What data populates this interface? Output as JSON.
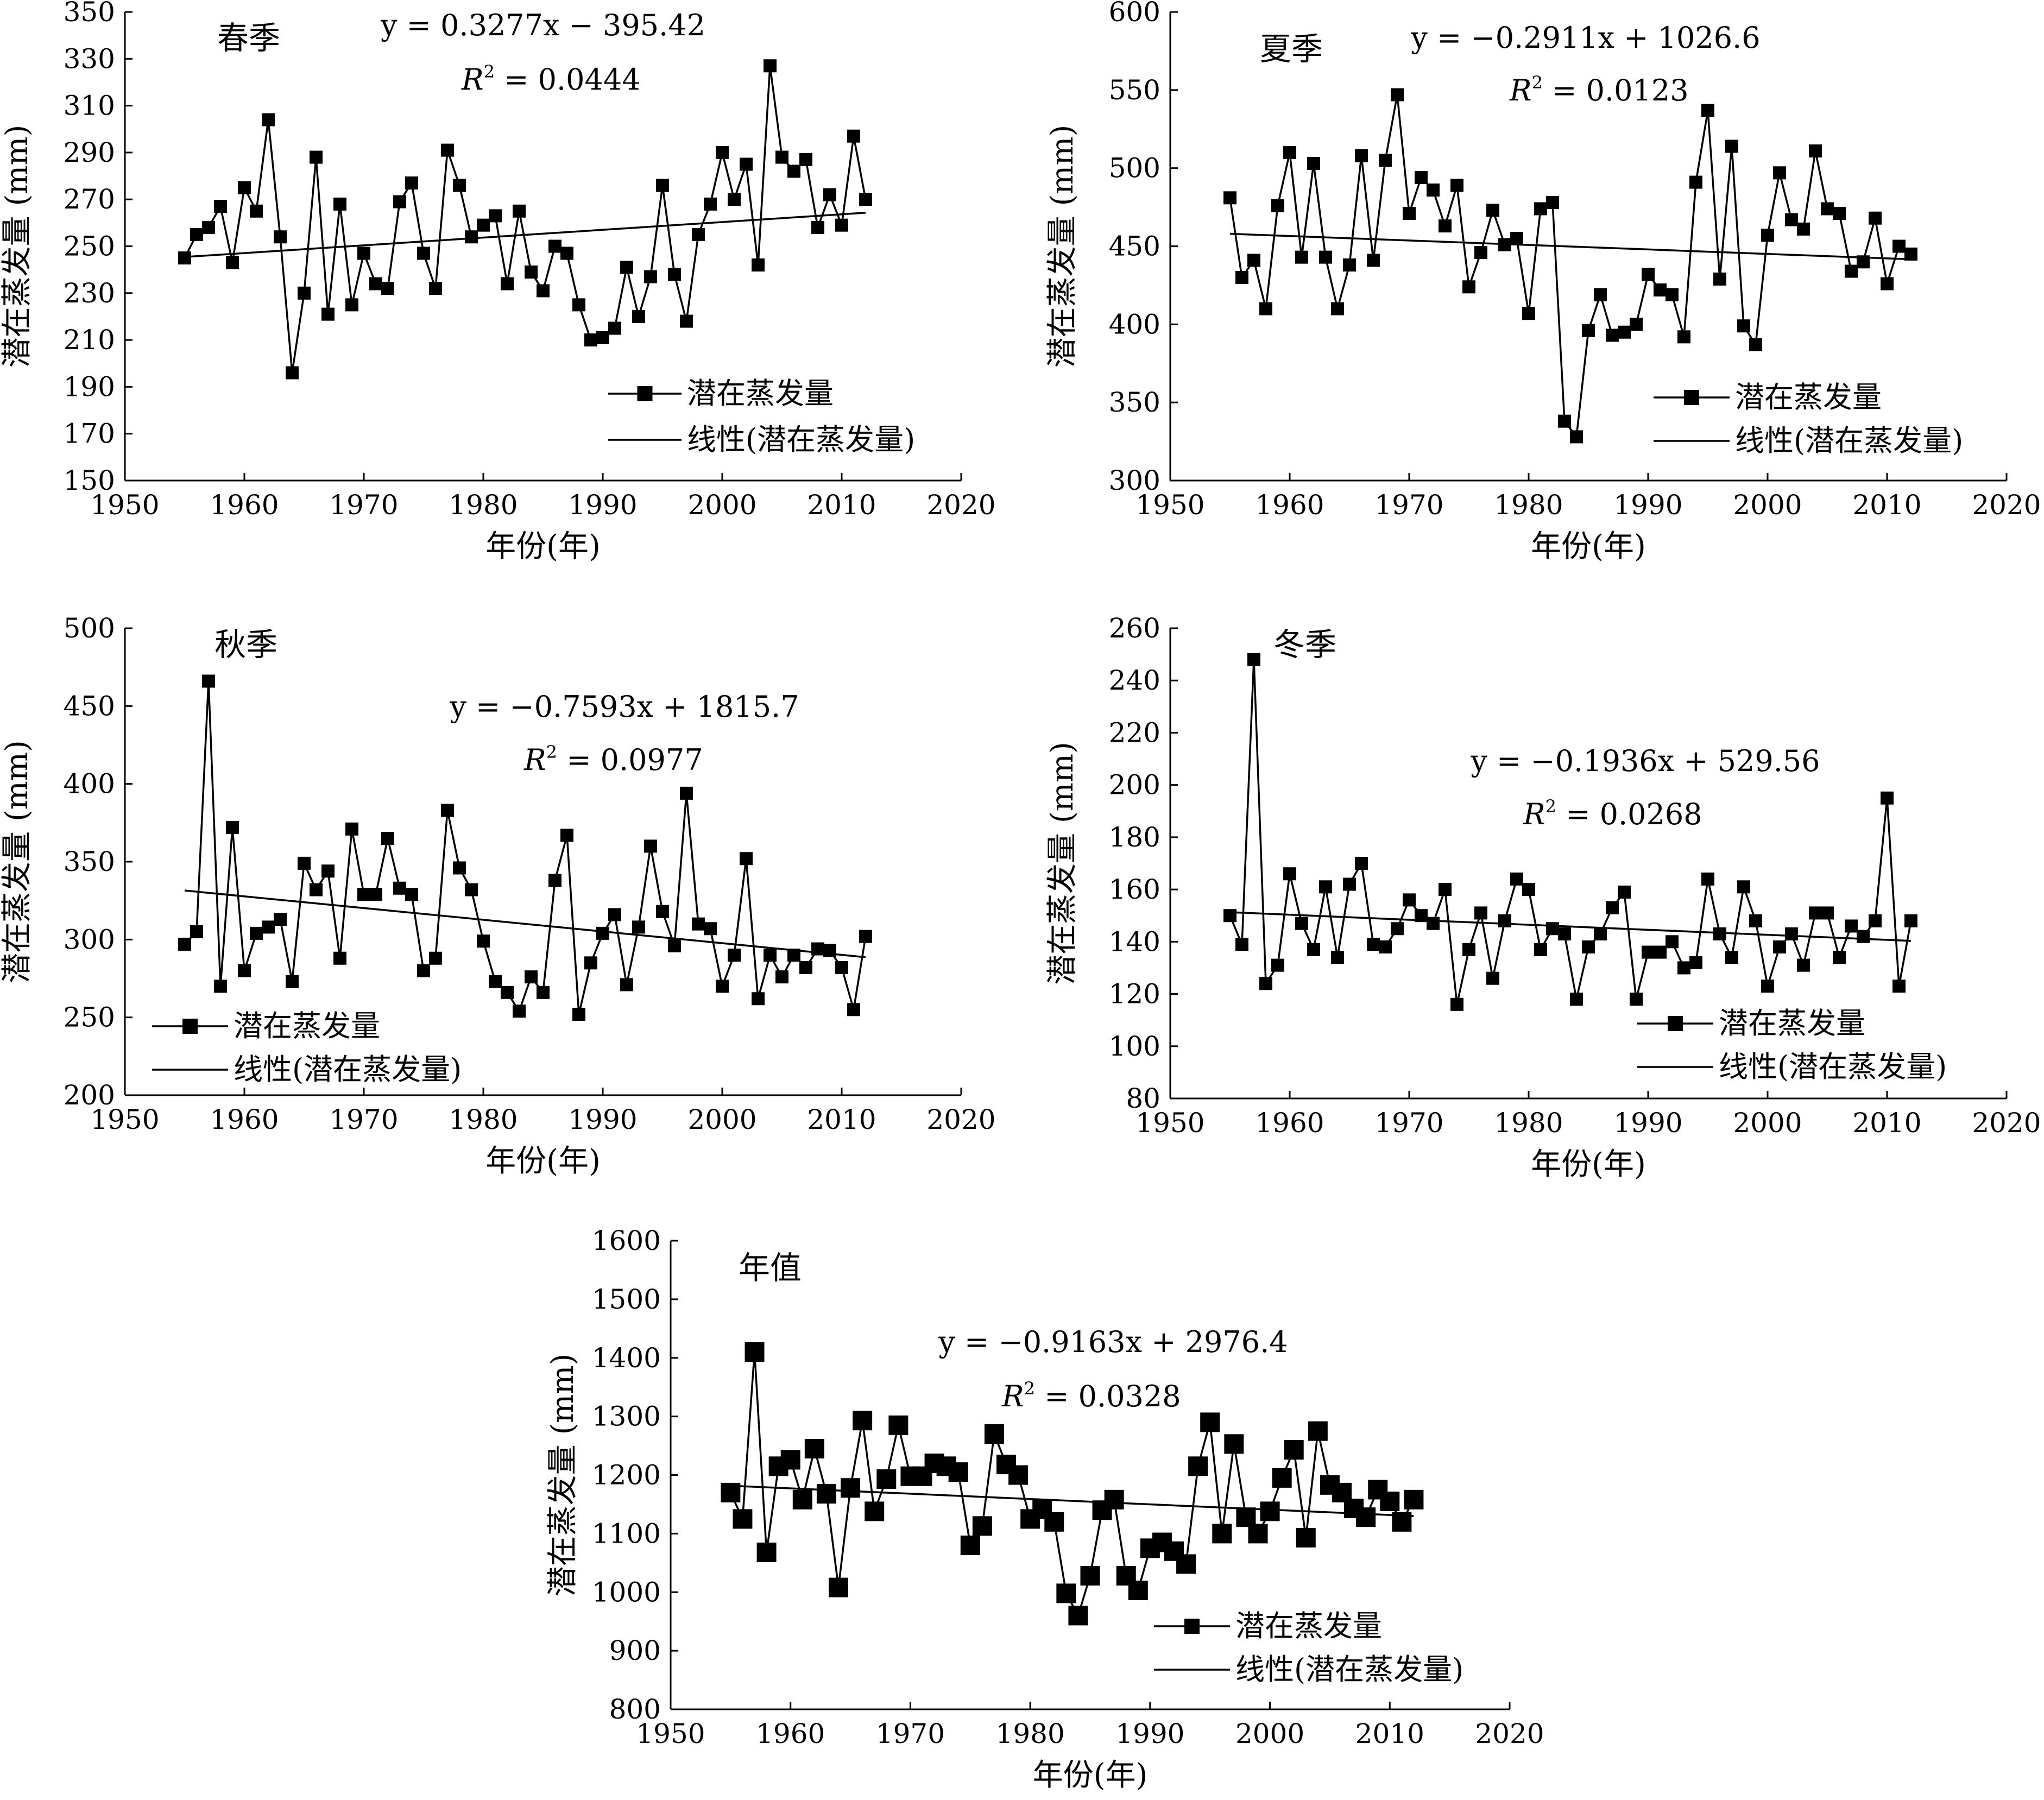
{
  "chart_data": [
    {
      "type": "line",
      "title": "春季",
      "xlabel": "年份(年)",
      "ylabel": "潜在蒸发量 (mm)",
      "xlim": [
        1950,
        2020
      ],
      "ylim": [
        150,
        350
      ],
      "xticks": [
        1950,
        1960,
        1970,
        1980,
        1990,
        2000,
        2010,
        2020
      ],
      "yticks": [
        150,
        170,
        190,
        210,
        230,
        250,
        270,
        290,
        310,
        330,
        350
      ],
      "equation": "y = 0.3277x − 395.42",
      "r2_prefix": "R",
      "r2_value": " = 0.0444",
      "legend": {
        "series": "潜在蒸发量",
        "trend": "线性(潜在蒸发量)",
        "position": "bottom-right"
      },
      "x": [
        1955,
        1956,
        1957,
        1958,
        1959,
        1960,
        1961,
        1962,
        1963,
        1964,
        1965,
        1966,
        1967,
        1968,
        1969,
        1970,
        1971,
        1972,
        1973,
        1974,
        1975,
        1976,
        1977,
        1978,
        1979,
        1980,
        1981,
        1982,
        1983,
        1984,
        1985,
        1986,
        1987,
        1988,
        1989,
        1990,
        1991,
        1992,
        1993,
        1994,
        1995,
        1996,
        1997,
        1998,
        1999,
        2000,
        2001,
        2002,
        2003,
        2004,
        2005,
        2006,
        2007,
        2008,
        2009,
        2010,
        2011,
        2012
      ],
      "values": [
        245,
        255,
        258,
        267,
        243,
        275,
        265,
        304,
        254,
        196,
        230,
        288,
        221,
        268,
        225,
        247,
        234,
        232,
        269,
        277,
        247,
        232,
        291,
        276,
        254,
        259,
        263,
        234,
        265,
        239,
        231,
        250,
        247,
        225,
        210,
        211,
        215,
        241,
        220,
        237,
        276,
        238,
        218,
        255,
        268,
        290,
        270,
        285,
        242,
        327,
        288,
        282,
        287,
        258,
        272,
        259,
        297,
        270
      ]
    },
    {
      "type": "line",
      "title": "夏季",
      "xlabel": "年份(年)",
      "ylabel": "潜在蒸发量 (mm)",
      "xlim": [
        1950,
        2020
      ],
      "ylim": [
        300,
        600
      ],
      "xticks": [
        1950,
        1960,
        1970,
        1980,
        1990,
        2000,
        2010,
        2020
      ],
      "yticks": [
        300,
        350,
        400,
        450,
        500,
        550,
        600
      ],
      "equation": "y = −0.2911x + 1026.6",
      "r2_prefix": "R",
      "r2_value": " = 0.0123",
      "legend": {
        "series": "潜在蒸发量",
        "trend": "线性(潜在蒸发量)",
        "position": "bottom-right"
      },
      "x": [
        1955,
        1956,
        1957,
        1958,
        1959,
        1960,
        1961,
        1962,
        1963,
        1964,
        1965,
        1966,
        1967,
        1968,
        1969,
        1970,
        1971,
        1972,
        1973,
        1974,
        1975,
        1976,
        1977,
        1978,
        1979,
        1980,
        1981,
        1982,
        1983,
        1984,
        1985,
        1986,
        1987,
        1988,
        1989,
        1990,
        1991,
        1992,
        1993,
        1994,
        1995,
        1996,
        1997,
        1998,
        1999,
        2000,
        2001,
        2002,
        2003,
        2004,
        2005,
        2006,
        2007,
        2008,
        2009,
        2010,
        2011,
        2012
      ],
      "values": [
        481,
        430,
        441,
        410,
        476,
        510,
        443,
        503,
        443,
        410,
        438,
        508,
        441,
        505,
        547,
        471,
        494,
        486,
        463,
        489,
        424,
        446,
        473,
        451,
        455,
        407,
        474,
        478,
        338,
        328,
        396,
        419,
        393,
        395,
        400,
        432,
        422,
        419,
        392,
        491,
        537,
        429,
        514,
        399,
        387,
        457,
        497,
        467,
        461,
        511,
        474,
        471,
        434,
        440,
        468,
        426,
        450,
        445
      ]
    },
    {
      "type": "line",
      "title": "秋季",
      "xlabel": "年份(年)",
      "ylabel": "潜在蒸发量 (mm)",
      "xlim": [
        1950,
        2020
      ],
      "ylim": [
        200,
        500
      ],
      "xticks": [
        1950,
        1960,
        1970,
        1980,
        1990,
        2000,
        2010,
        2020
      ],
      "yticks": [
        200,
        250,
        300,
        350,
        400,
        450,
        500
      ],
      "equation": "y = −0.7593x + 1815.7",
      "r2_prefix": "R",
      "r2_value": " = 0.0977",
      "legend": {
        "series": "潜在蒸发量",
        "trend": "线性(潜在蒸发量)",
        "position": "bottom-left"
      },
      "x": [
        1955,
        1956,
        1957,
        1958,
        1959,
        1960,
        1961,
        1962,
        1963,
        1964,
        1965,
        1966,
        1967,
        1968,
        1969,
        1970,
        1971,
        1972,
        1973,
        1974,
        1975,
        1976,
        1977,
        1978,
        1979,
        1980,
        1981,
        1982,
        1983,
        1984,
        1985,
        1986,
        1987,
        1988,
        1989,
        1990,
        1991,
        1992,
        1993,
        1994,
        1995,
        1996,
        1997,
        1998,
        1999,
        2000,
        2001,
        2002,
        2003,
        2004,
        2005,
        2006,
        2007,
        2008,
        2009,
        2010,
        2011,
        2012
      ],
      "values": [
        297,
        305,
        466,
        270,
        372,
        280,
        304,
        308,
        313,
        273,
        349,
        332,
        344,
        288,
        371,
        329,
        329,
        365,
        333,
        329,
        280,
        288,
        383,
        346,
        332,
        299,
        273,
        266,
        254,
        276,
        266,
        338,
        367,
        252,
        285,
        304,
        316,
        271,
        308,
        360,
        318,
        296,
        394,
        310,
        307,
        270,
        290,
        352,
        262,
        290,
        276,
        290,
        282,
        294,
        293,
        282,
        255,
        302
      ]
    },
    {
      "type": "line",
      "title": "冬季",
      "xlabel": "年份(年)",
      "ylabel": "潜在蒸发量 (mm)",
      "xlim": [
        1950,
        2020
      ],
      "ylim": [
        80,
        260
      ],
      "xticks": [
        1950,
        1960,
        1970,
        1980,
        1990,
        2000,
        2010,
        2020
      ],
      "yticks": [
        80,
        100,
        120,
        140,
        160,
        180,
        200,
        220,
        240,
        260
      ],
      "equation": "y = −0.1936x + 529.56",
      "r2_prefix": "R",
      "r2_value": " = 0.0268",
      "legend": {
        "series": "潜在蒸发量",
        "trend": "线性(潜在蒸发量)",
        "position": "bottom-right"
      },
      "x": [
        1955,
        1956,
        1957,
        1958,
        1959,
        1960,
        1961,
        1962,
        1963,
        1964,
        1965,
        1966,
        1967,
        1968,
        1969,
        1970,
        1971,
        1972,
        1973,
        1974,
        1975,
        1976,
        1977,
        1978,
        1979,
        1980,
        1981,
        1982,
        1983,
        1984,
        1985,
        1986,
        1987,
        1988,
        1989,
        1990,
        1991,
        1992,
        1993,
        1994,
        1995,
        1996,
        1997,
        1998,
        1999,
        2000,
        2001,
        2002,
        2003,
        2004,
        2005,
        2006,
        2007,
        2008,
        2009,
        2010,
        2011,
        2012
      ],
      "values": [
        150,
        139,
        248,
        124,
        131,
        166,
        147,
        137,
        161,
        134,
        162,
        170,
        139,
        138,
        145,
        156,
        150,
        147,
        160,
        116,
        137,
        151,
        126,
        148,
        164,
        160,
        137,
        145,
        143,
        118,
        138,
        143,
        153,
        159,
        118,
        136,
        136,
        140,
        130,
        132,
        164,
        143,
        134,
        161,
        148,
        123,
        138,
        143,
        131,
        151,
        151,
        134,
        146,
        142,
        148,
        195,
        123,
        148
      ]
    },
    {
      "type": "line",
      "title": "年值",
      "xlabel": "年份(年)",
      "ylabel": "潜在蒸发量 (mm)",
      "xlim": [
        1950,
        2020
      ],
      "ylim": [
        800,
        1600
      ],
      "xticks": [
        1950,
        1960,
        1970,
        1980,
        1990,
        2000,
        2010,
        2020
      ],
      "yticks": [
        800,
        900,
        1000,
        1100,
        1200,
        1300,
        1400,
        1500,
        1600
      ],
      "equation": "y = −0.9163x + 2976.4",
      "r2_prefix": "R",
      "r2_value": " = 0.0328",
      "legend": {
        "series": "潜在蒸发量",
        "trend": "线性(潜在蒸发量)",
        "position": "bottom-right"
      },
      "x": [
        1955,
        1956,
        1957,
        1958,
        1959,
        1960,
        1961,
        1962,
        1963,
        1964,
        1965,
        1966,
        1967,
        1968,
        1969,
        1970,
        1971,
        1972,
        1973,
        1974,
        1975,
        1976,
        1977,
        1978,
        1979,
        1980,
        1981,
        1982,
        1983,
        1984,
        1985,
        1986,
        1987,
        1988,
        1989,
        1990,
        1991,
        1992,
        1993,
        1994,
        1995,
        1996,
        1997,
        1998,
        1999,
        2000,
        2001,
        2002,
        2003,
        2004,
        2005,
        2006,
        2007,
        2008,
        2009,
        2010,
        2011,
        2012
      ],
      "values": [
        1170,
        1125,
        1410,
        1068,
        1215,
        1226,
        1158,
        1245,
        1168,
        1008,
        1178,
        1293,
        1138,
        1193,
        1285,
        1198,
        1198,
        1220,
        1215,
        1205,
        1080,
        1113,
        1270,
        1218,
        1200,
        1125,
        1142,
        1120,
        998,
        960,
        1028,
        1140,
        1158,
        1028,
        1003,
        1075,
        1085,
        1070,
        1048,
        1215,
        1290,
        1100,
        1253,
        1128,
        1100,
        1138,
        1195,
        1243,
        1093,
        1275,
        1183,
        1170,
        1143,
        1128,
        1175,
        1155,
        1120,
        1158
      ]
    }
  ]
}
